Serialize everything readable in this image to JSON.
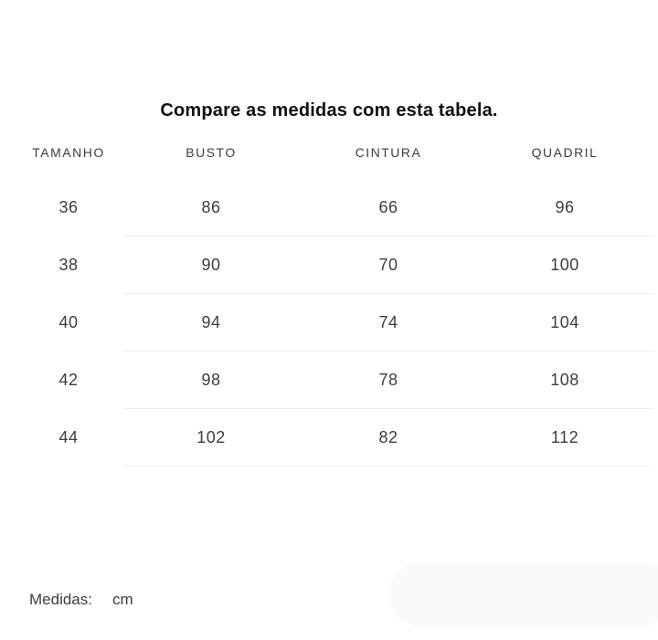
{
  "page": {
    "title": "Compare as medidas com esta tabela."
  },
  "table": {
    "headers": [
      "TAMANHO",
      "BUSTO",
      "CINTURA",
      "QUADRIL"
    ],
    "rows": [
      [
        "36",
        "86",
        "66",
        "96"
      ],
      [
        "38",
        "90",
        "70",
        "100"
      ],
      [
        "40",
        "94",
        "74",
        "104"
      ],
      [
        "42",
        "98",
        "78",
        "108"
      ],
      [
        "44",
        "102",
        "82",
        "112"
      ]
    ]
  },
  "footer": {
    "measures_label": "Medidas:",
    "measures_unit": "cm"
  },
  "colors": {
    "background": "#ffffff",
    "title_text": "#111111",
    "body_text": "#3d3d3d",
    "divider": "#efefef",
    "pill": "#fafafa"
  },
  "chart_data": {
    "type": "table",
    "title": "Compare as medidas com esta tabela.",
    "columns": [
      "TAMANHO",
      "BUSTO",
      "CINTURA",
      "QUADRIL"
    ],
    "rows": [
      [
        36,
        86,
        66,
        96
      ],
      [
        38,
        90,
        70,
        100
      ],
      [
        40,
        94,
        74,
        104
      ],
      [
        42,
        98,
        78,
        108
      ],
      [
        44,
        102,
        82,
        112
      ]
    ],
    "unit": "cm"
  }
}
